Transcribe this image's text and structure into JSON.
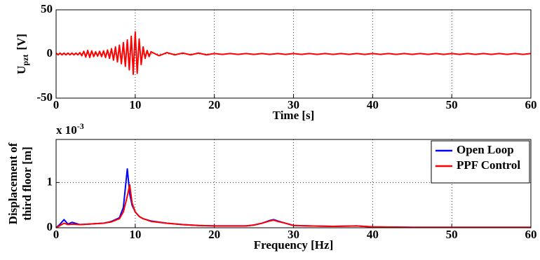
{
  "chart_data": [
    {
      "type": "line",
      "xlabel": "Time [s]",
      "ylabel": [
        "U",
        "pzt",
        "[V]"
      ],
      "xlim": [
        0,
        60
      ],
      "xticks": [
        0,
        10,
        20,
        30,
        40,
        50,
        60
      ],
      "ylim": [
        -50,
        50
      ],
      "yticks": [
        -50,
        0,
        50
      ],
      "grid": true,
      "x": [
        0,
        0.25,
        0.5,
        0.75,
        1,
        1.25,
        1.5,
        1.75,
        2,
        2.25,
        2.5,
        2.75,
        3,
        3.25,
        3.5,
        3.75,
        4,
        4.25,
        4.5,
        4.75,
        5,
        5.25,
        5.5,
        5.75,
        6,
        6.25,
        6.5,
        6.75,
        7,
        7.25,
        7.5,
        7.75,
        8,
        8.25,
        8.5,
        8.75,
        9,
        9.25,
        9.5,
        9.75,
        10,
        10.25,
        10.5,
        10.75,
        11,
        11.25,
        11.5,
        11.75,
        12,
        13,
        14,
        15,
        16,
        17,
        18,
        19,
        20,
        21,
        22,
        23,
        24,
        25,
        26,
        27,
        28,
        29,
        30,
        31,
        32,
        33,
        34,
        35,
        36,
        37,
        38,
        39,
        40,
        41,
        42,
        43,
        44,
        45,
        46,
        47,
        48,
        49,
        50,
        51,
        52,
        53,
        54,
        55,
        56,
        57,
        58,
        59,
        60
      ],
      "series": [
        {
          "color": "#ff0000",
          "values": [
            1,
            -1,
            1,
            -1,
            1,
            -1,
            1,
            -1,
            1,
            -1,
            1,
            -1,
            1.5,
            -2,
            3,
            -3.5,
            4,
            -4,
            3.5,
            -3,
            2.5,
            -2.5,
            3,
            -3,
            3.5,
            -4,
            4.5,
            -5,
            6,
            -7,
            8,
            -9,
            10,
            -11,
            13,
            -14,
            16,
            -18,
            20,
            -23,
            25,
            -22,
            17,
            -12,
            8,
            -5,
            4,
            -3,
            2.5,
            -2,
            1.5,
            -1,
            1,
            -1,
            1,
            -1,
            0.5,
            -0.5,
            0.5,
            -0.5,
            0.5,
            -0.5,
            0.5,
            -0.5,
            0.5,
            -0.5,
            0.5,
            -0.5,
            0.5,
            -0.5,
            0.5,
            -0.5,
            0.5,
            -0.5,
            0.5,
            -0.5,
            0.5,
            -0.5,
            0.5,
            -0.5,
            0.5,
            -0.5,
            0.5,
            -0.5,
            0.5,
            -0.5,
            0.5,
            -0.5,
            0.5,
            -0.5,
            0.5,
            -0.5,
            0.5,
            -0.5,
            0.5,
            -0.5,
            0.5
          ]
        }
      ]
    },
    {
      "type": "line",
      "xlabel": "Frequency [Hz]",
      "ylabel": [
        "Displacement of",
        "third floor [m]"
      ],
      "y_multiplier": [
        "x 10",
        "-3"
      ],
      "xlim": [
        0,
        60
      ],
      "xticks": [
        0,
        10,
        20,
        30,
        40,
        50,
        60
      ],
      "ylim": [
        0,
        1.95
      ],
      "yticks": [
        0,
        1
      ],
      "grid": true,
      "legend": "upper right",
      "x": [
        0,
        0.5,
        1,
        1.5,
        2,
        3,
        4,
        5,
        6,
        7,
        8,
        8.5,
        9,
        9.3,
        9.6,
        10,
        10.5,
        11,
        12,
        14,
        16,
        18,
        20,
        22,
        24,
        25,
        26,
        27,
        27.5,
        28,
        29,
        30,
        32,
        35,
        38,
        40,
        45,
        50,
        55,
        60
      ],
      "series": [
        {
          "name": "Open Loop",
          "color": "#0000ff",
          "values": [
            0,
            0.08,
            0.18,
            0.08,
            0.12,
            0.07,
            0.08,
            0.09,
            0.1,
            0.14,
            0.22,
            0.45,
            1.3,
            0.75,
            0.5,
            0.35,
            0.25,
            0.2,
            0.15,
            0.1,
            0.07,
            0.05,
            0.04,
            0.04,
            0.04,
            0.06,
            0.1,
            0.16,
            0.18,
            0.15,
            0.1,
            0.05,
            0.04,
            0.03,
            0.04,
            0.02,
            0.01,
            0.01,
            0.01,
            0.01
          ]
        },
        {
          "name": "PPF Control",
          "color": "#ff0000",
          "values": [
            0,
            0.05,
            0.1,
            0.07,
            0.08,
            0.07,
            0.08,
            0.09,
            0.1,
            0.13,
            0.2,
            0.35,
            0.7,
            0.95,
            0.55,
            0.35,
            0.25,
            0.2,
            0.14,
            0.1,
            0.07,
            0.05,
            0.04,
            0.04,
            0.04,
            0.06,
            0.1,
            0.15,
            0.17,
            0.14,
            0.1,
            0.05,
            0.04,
            0.03,
            0.04,
            0.02,
            0.01,
            0.01,
            0.01,
            0.01
          ]
        }
      ]
    }
  ]
}
